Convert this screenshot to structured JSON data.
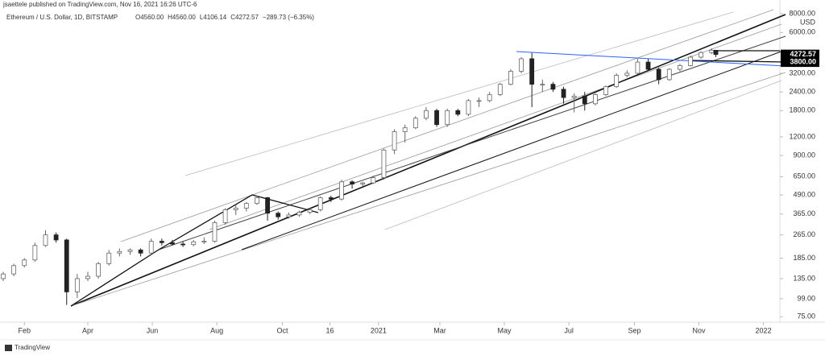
{
  "header": "jsaettele published on TradingView.com, Nov 16, 2021 16:26 UTC-6",
  "footer": "TradingView",
  "chart_data": {
    "type": "candlestick",
    "symbol": "Ethereum / U.S. Dollar, 1D, BITSTAMP",
    "legend_values": [
      "O4560.00",
      "H4560.00",
      "L4106.14",
      "C4272.57",
      "−289.73 (−6.35%)"
    ],
    "y_axis_unit": "USD",
    "log_scale": true,
    "grid": false,
    "up_color": "#666666",
    "down_color": "#222222",
    "x": [
      0,
      10,
      20,
      30,
      40,
      50,
      60,
      70,
      80,
      90,
      100,
      110,
      120,
      130,
      140,
      150,
      160,
      170,
      180,
      190,
      200,
      210,
      220,
      230,
      240,
      250,
      260,
      270,
      280,
      290,
      300,
      310,
      320,
      330,
      340,
      350,
      360,
      370,
      380,
      390,
      400,
      410,
      420,
      430,
      440,
      450,
      460,
      470,
      480,
      490,
      500,
      510,
      520,
      530,
      540,
      550,
      560,
      570,
      580,
      590,
      600,
      610,
      620,
      630,
      640,
      650,
      660,
      670,
      674
    ],
    "open": [
      135,
      145,
      165,
      180,
      225,
      265,
      245,
      110,
      135,
      140,
      170,
      200,
      205,
      210,
      200,
      240,
      235,
      230,
      228,
      238,
      240,
      320,
      390,
      400,
      430,
      470,
      370,
      350,
      360,
      375,
      390,
      470,
      460,
      600,
      580,
      590,
      640,
      980,
      1300,
      1380,
      1600,
      1800,
      1450,
      1800,
      1700,
      2100,
      2100,
      2300,
      2700,
      3300,
      4000,
      2700,
      2700,
      2500,
      2200,
      2250,
      2000,
      2300,
      2600,
      3100,
      3200,
      3800,
      3400,
      2900,
      3400,
      3600,
      4100,
      4400,
      4560
    ],
    "high": [
      150,
      170,
      185,
      235,
      285,
      275,
      250,
      145,
      150,
      175,
      210,
      215,
      215,
      215,
      250,
      250,
      245,
      240,
      245,
      255,
      330,
      400,
      420,
      440,
      485,
      475,
      380,
      375,
      385,
      400,
      480,
      485,
      620,
      615,
      600,
      660,
      1000,
      1350,
      1450,
      1650,
      1900,
      1850,
      1850,
      1850,
      2150,
      2200,
      2400,
      2750,
      3400,
      4100,
      4380,
      2900,
      2800,
      2600,
      2350,
      2400,
      2350,
      2650,
      3200,
      3350,
      4000,
      4000,
      3500,
      3450,
      3700,
      4200,
      4500,
      4700,
      4560
    ],
    "low": [
      130,
      140,
      160,
      175,
      220,
      235,
      90,
      100,
      130,
      135,
      165,
      190,
      195,
      190,
      195,
      225,
      225,
      220,
      222,
      230,
      235,
      310,
      360,
      380,
      420,
      330,
      335,
      340,
      350,
      365,
      380,
      440,
      450,
      540,
      560,
      580,
      620,
      920,
      1100,
      1350,
      1550,
      1400,
      1400,
      1650,
      1650,
      1900,
      2050,
      2250,
      2650,
      3200,
      1900,
      2400,
      2400,
      2000,
      1750,
      1800,
      1950,
      2250,
      2550,
      3000,
      3150,
      3300,
      2700,
      2850,
      3300,
      3550,
      4000,
      4300,
      4106.14
    ],
    "close": [
      145,
      165,
      180,
      225,
      265,
      245,
      110,
      135,
      140,
      170,
      200,
      205,
      210,
      200,
      240,
      235,
      230,
      228,
      238,
      240,
      320,
      390,
      400,
      430,
      470,
      370,
      350,
      360,
      375,
      390,
      470,
      460,
      600,
      580,
      590,
      640,
      980,
      1300,
      1380,
      1600,
      1800,
      1450,
      1800,
      1700,
      2100,
      2100,
      2300,
      2700,
      3300,
      4000,
      2700,
      2700,
      2500,
      2200,
      2250,
      2000,
      2300,
      2600,
      3100,
      3200,
      3800,
      3400,
      2900,
      3400,
      3600,
      4100,
      4400,
      4560,
      4272.57
    ],
    "xlim": [
      0,
      730
    ],
    "xticks": [
      {
        "value": 20,
        "label": "Feb"
      },
      {
        "value": 80,
        "label": "Apr"
      },
      {
        "value": 141,
        "label": "Jun"
      },
      {
        "value": 202,
        "label": "Aug"
      },
      {
        "value": 264,
        "label": "Oct"
      },
      {
        "value": 309,
        "label": "16"
      },
      {
        "value": 355,
        "label": "2021"
      },
      {
        "value": 413,
        "label": "Mar"
      },
      {
        "value": 474,
        "label": "May"
      },
      {
        "value": 535,
        "label": "Jul"
      },
      {
        "value": 597,
        "label": "Sep"
      },
      {
        "value": 658,
        "label": "Nov"
      },
      {
        "value": 719,
        "label": "2022"
      }
    ],
    "ylim": [
      69,
      9300
    ],
    "yticks": [
      {
        "value": 75,
        "label": "75.00"
      },
      {
        "value": 99,
        "label": "99.00"
      },
      {
        "value": 135,
        "label": "135.00"
      },
      {
        "value": 185,
        "label": "185.00"
      },
      {
        "value": 265,
        "label": "265.00"
      },
      {
        "value": 365,
        "label": "365.00"
      },
      {
        "value": 490,
        "label": "490.00"
      },
      {
        "value": 650,
        "label": "650.00"
      },
      {
        "value": 900,
        "label": "900.00"
      },
      {
        "value": 1200,
        "label": "1200.00"
      },
      {
        "value": 1800,
        "label": "1800.00"
      },
      {
        "value": 2400,
        "label": "2400.00"
      },
      {
        "value": 3200,
        "label": "3200.00"
      },
      {
        "value": 6000,
        "label": "6000.00"
      },
      {
        "value": 8000,
        "label": "8000.00"
      }
    ],
    "price_labels": [
      {
        "value": 4272.57,
        "label": "4272.57"
      },
      {
        "value": 3800,
        "label": "3800.00"
      }
    ]
  }
}
